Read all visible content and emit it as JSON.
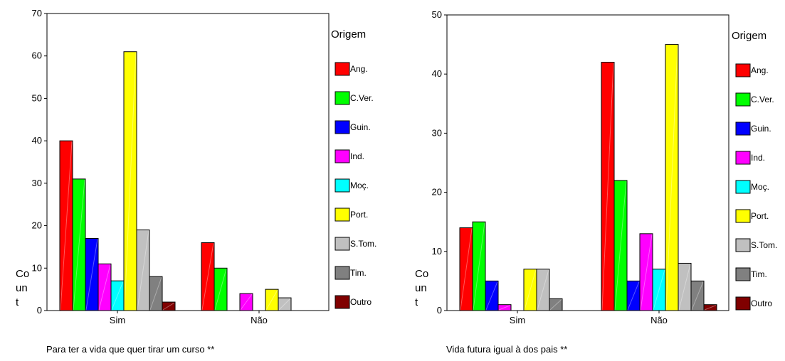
{
  "colors": {
    "Ang.": "#ff0000",
    "C.Ver.": "#00ff00",
    "Guin.": "#0000ff",
    "Ind.": "#ff00ff",
    "Moç.": "#00ffff",
    "Port.": "#ffff00",
    "S.Tom.": "#c0c0c0",
    "Tim.": "#808080",
    "Outro": "#800000"
  },
  "chart_data": [
    {
      "type": "bar",
      "caption": "Para ter a vida que quer tirar um curso **",
      "ylabel_lines": [
        "Co",
        "un",
        "t"
      ],
      "legend_title": "Origem",
      "categories": [
        "Sim",
        "Não"
      ],
      "ylim": [
        0,
        70
      ],
      "yticks": [
        0,
        10,
        20,
        30,
        40,
        50,
        60,
        70
      ],
      "grid": false,
      "legend_position": "right",
      "series": [
        {
          "name": "Ang.",
          "values": [
            40,
            16
          ]
        },
        {
          "name": "C.Ver.",
          "values": [
            31,
            10
          ]
        },
        {
          "name": "Guin.",
          "values": [
            17,
            0
          ]
        },
        {
          "name": "Ind.",
          "values": [
            11,
            4
          ]
        },
        {
          "name": "Moç.",
          "values": [
            7,
            0
          ]
        },
        {
          "name": "Port.",
          "values": [
            61,
            5
          ]
        },
        {
          "name": "S.Tom.",
          "values": [
            19,
            3
          ]
        },
        {
          "name": "Tim.",
          "values": [
            8,
            0
          ]
        },
        {
          "name": "Outro",
          "values": [
            2,
            0
          ]
        }
      ]
    },
    {
      "type": "bar",
      "caption": "Vida futura igual à dos pais **",
      "ylabel_lines": [
        "Co",
        "un",
        "t"
      ],
      "legend_title": "Origem",
      "categories": [
        "Sim",
        "Não"
      ],
      "ylim": [
        0,
        50
      ],
      "yticks": [
        0,
        10,
        20,
        30,
        40,
        50
      ],
      "grid": false,
      "legend_position": "right",
      "series": [
        {
          "name": "Ang.",
          "values": [
            14,
            42
          ]
        },
        {
          "name": "C.Ver.",
          "values": [
            15,
            22
          ]
        },
        {
          "name": "Guin.",
          "values": [
            5,
            5
          ]
        },
        {
          "name": "Ind.",
          "values": [
            1,
            13
          ]
        },
        {
          "name": "Moç.",
          "values": [
            0,
            7
          ]
        },
        {
          "name": "Port.",
          "values": [
            7,
            45
          ]
        },
        {
          "name": "S.Tom.",
          "values": [
            7,
            8
          ]
        },
        {
          "name": "Tim.",
          "values": [
            2,
            5
          ]
        },
        {
          "name": "Outro",
          "values": [
            0,
            1
          ]
        }
      ]
    }
  ]
}
